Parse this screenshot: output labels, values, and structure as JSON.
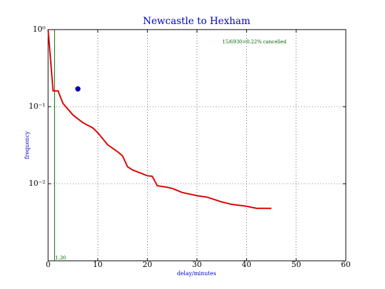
{
  "chart_data": {
    "type": "line",
    "title": "Newcastle to Hexham",
    "x_label": "delay/minutes",
    "y_label": "frequency",
    "annotation": "15/6930=0.22% cancelled",
    "log_y": true,
    "grid": true,
    "xlim": [
      0,
      60
    ],
    "xticks": [
      0,
      10,
      20,
      30,
      40,
      50,
      60
    ],
    "ylim": [
      0.001,
      1
    ],
    "yticks": [
      {
        "value": 1,
        "label": "10⁰"
      },
      {
        "value": 0.1,
        "label": "10⁻¹"
      },
      {
        "value": 0.01,
        "label": "10⁻²"
      }
    ],
    "series": [
      {
        "color": "#dd0000",
        "x": [
          0,
          1,
          2,
          3,
          5,
          7,
          9,
          10,
          12,
          14,
          15,
          16,
          17,
          20,
          21,
          22,
          24,
          25,
          27,
          30,
          32,
          35,
          36,
          37,
          40,
          42,
          45
        ],
        "values": [
          1,
          0.16,
          0.16,
          0.11,
          0.078,
          0.062,
          0.053,
          0.046,
          0.032,
          0.026,
          0.023,
          0.0166,
          0.0151,
          0.0127,
          0.0125,
          0.0094,
          0.009,
          0.0087,
          0.0077,
          0.007,
          0.0067,
          0.0058,
          0.0056,
          0.0054,
          0.0051,
          0.0048,
          0.0048
        ]
      }
    ],
    "vline": {
      "x": 1.3,
      "label": "1.30",
      "color": "#006400"
    },
    "point": {
      "x": 6,
      "y": 0.17,
      "color": "#0000cc"
    }
  }
}
